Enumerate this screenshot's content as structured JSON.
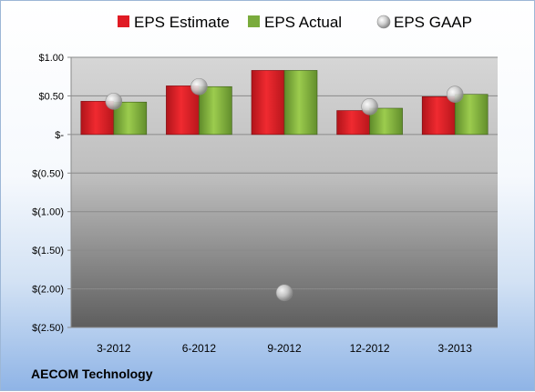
{
  "chart_data": {
    "type": "bar",
    "categories": [
      "3-2012",
      "6-2012",
      "9-2012",
      "12-2012",
      "3-2013"
    ],
    "series": [
      {
        "name": "EPS Estimate",
        "kind": "bar",
        "color": "#e01b24",
        "values": [
          0.43,
          0.63,
          0.83,
          0.31,
          0.49
        ]
      },
      {
        "name": "EPS Actual",
        "kind": "bar",
        "color": "#7aab3c",
        "values": [
          0.42,
          0.62,
          0.83,
          0.34,
          0.52
        ]
      },
      {
        "name": "EPS GAAP",
        "kind": "marker",
        "color": "#c8c8c8",
        "values": [
          0.43,
          0.62,
          -2.05,
          0.36,
          0.52
        ]
      }
    ],
    "ylim": [
      -2.5,
      1.0
    ],
    "yticks": [
      1.0,
      0.5,
      0.0,
      -0.5,
      -1.0,
      -1.5,
      -2.0,
      -2.5
    ],
    "ytick_labels": [
      "$1.00",
      "$0.50",
      "$-",
      "$(0.50)",
      "$(1.00)",
      "$(1.50)",
      "$(2.00)",
      "$(2.50)"
    ],
    "grid": true,
    "legend_position": "top"
  },
  "company": "AECOM Technology"
}
